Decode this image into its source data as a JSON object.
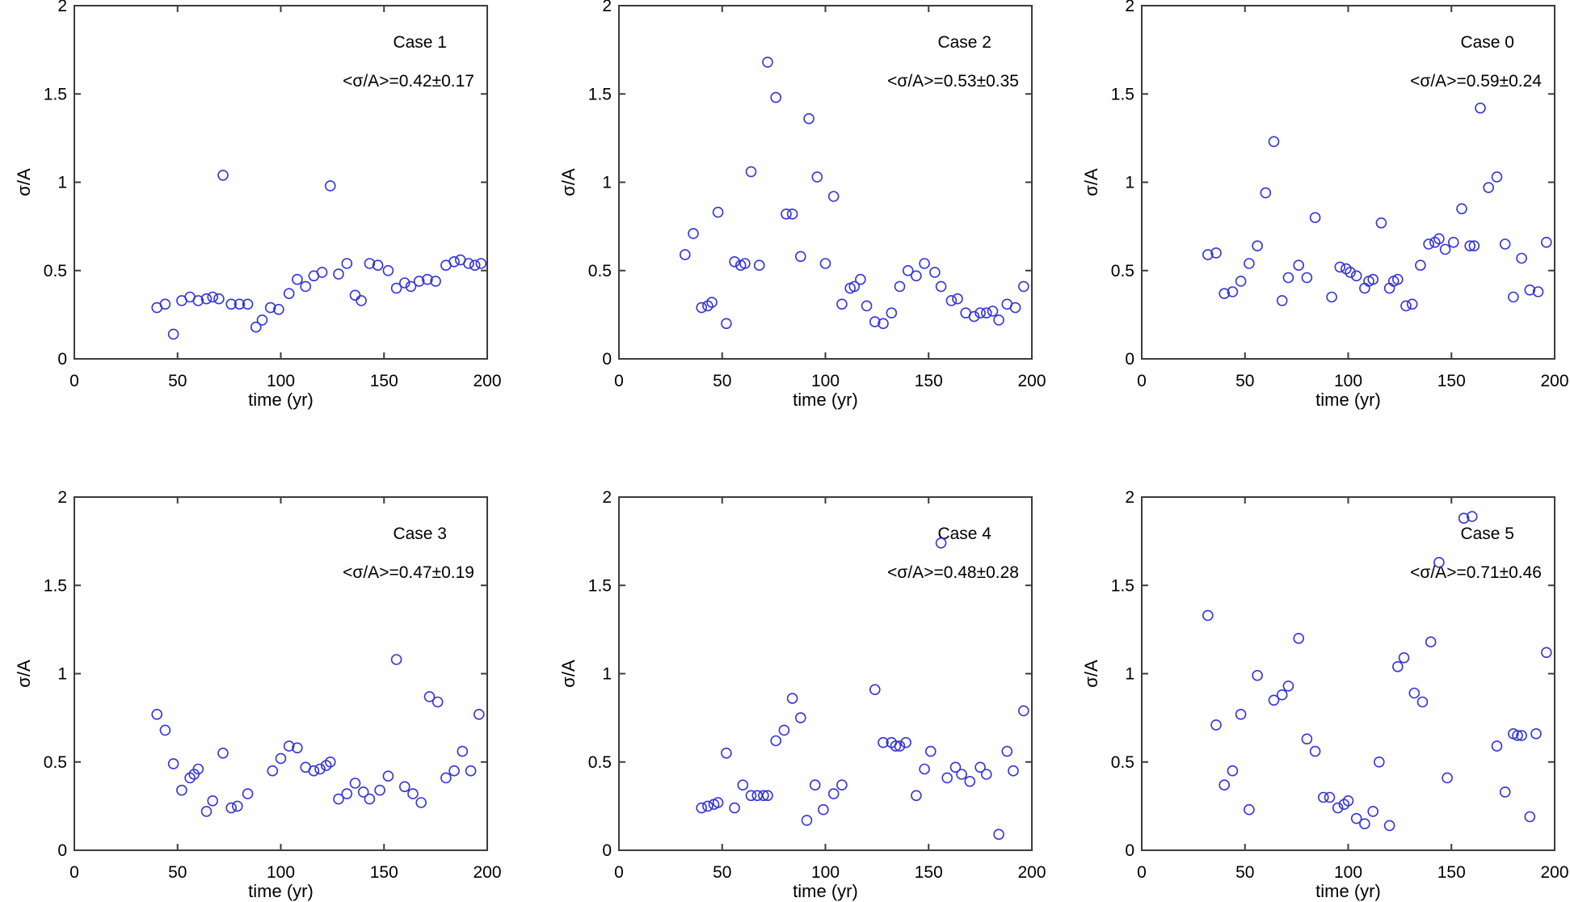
{
  "figure": {
    "background_color": "#ffffff",
    "axis_color": "#3c3c3c",
    "text_color": "#000000",
    "marker_color": "#3535d8",
    "xlabel": "time (yr)",
    "ylabel": "σ/A",
    "xlim": [
      0,
      200
    ],
    "ylim": [
      0,
      2
    ],
    "x_ticks": [
      0,
      50,
      100,
      150,
      200
    ],
    "y_ticks": [
      0,
      0.5,
      1,
      1.5,
      2
    ],
    "x_tick_labels": [
      "0",
      "50",
      "100",
      "150",
      "200"
    ],
    "y_tick_labels": [
      "0",
      "0.5",
      "1",
      "1.5",
      "2"
    ]
  },
  "chart_data": [
    {
      "type": "scatter",
      "title": "Case 1",
      "annotation": "<σ/A>=0.42±0.17",
      "mean": 0.42,
      "std": 0.17,
      "xlabel": "time (yr)",
      "ylabel": "σ/A",
      "xlim": [
        0,
        200
      ],
      "ylim": [
        0,
        2
      ],
      "grid": false,
      "legend": "none",
      "points": [
        [
          40,
          0.29
        ],
        [
          44,
          0.31
        ],
        [
          48,
          0.14
        ],
        [
          52,
          0.33
        ],
        [
          56,
          0.35
        ],
        [
          60,
          0.33
        ],
        [
          64,
          0.34
        ],
        [
          67,
          0.35
        ],
        [
          70,
          0.34
        ],
        [
          72,
          1.04
        ],
        [
          76,
          0.31
        ],
        [
          80,
          0.31
        ],
        [
          84,
          0.31
        ],
        [
          88,
          0.18
        ],
        [
          91,
          0.22
        ],
        [
          95,
          0.29
        ],
        [
          99,
          0.28
        ],
        [
          104,
          0.37
        ],
        [
          108,
          0.45
        ],
        [
          112,
          0.41
        ],
        [
          116,
          0.47
        ],
        [
          120,
          0.49
        ],
        [
          124,
          0.98
        ],
        [
          128,
          0.48
        ],
        [
          132,
          0.54
        ],
        [
          136,
          0.36
        ],
        [
          139,
          0.33
        ],
        [
          143,
          0.54
        ],
        [
          147,
          0.53
        ],
        [
          152,
          0.5
        ],
        [
          156,
          0.4
        ],
        [
          160,
          0.43
        ],
        [
          163,
          0.41
        ],
        [
          167,
          0.44
        ],
        [
          171,
          0.45
        ],
        [
          175,
          0.44
        ],
        [
          180,
          0.53
        ],
        [
          184,
          0.55
        ],
        [
          187,
          0.56
        ],
        [
          191,
          0.54
        ],
        [
          194,
          0.53
        ],
        [
          197,
          0.54
        ]
      ]
    },
    {
      "type": "scatter",
      "title": "Case 2",
      "annotation": "<σ/A>=0.53±0.35",
      "mean": 0.53,
      "std": 0.35,
      "xlabel": "time (yr)",
      "ylabel": "σ/A",
      "xlim": [
        0,
        200
      ],
      "ylim": [
        0,
        2
      ],
      "grid": false,
      "legend": "none",
      "points": [
        [
          32,
          0.59
        ],
        [
          36,
          0.71
        ],
        [
          40,
          0.29
        ],
        [
          43,
          0.3
        ],
        [
          45,
          0.32
        ],
        [
          48,
          0.83
        ],
        [
          52,
          0.2
        ],
        [
          56,
          0.55
        ],
        [
          59,
          0.53
        ],
        [
          61,
          0.54
        ],
        [
          64,
          1.06
        ],
        [
          68,
          0.53
        ],
        [
          72,
          1.68
        ],
        [
          76,
          1.48
        ],
        [
          81,
          0.82
        ],
        [
          84,
          0.82
        ],
        [
          88,
          0.58
        ],
        [
          92,
          1.36
        ],
        [
          96,
          1.03
        ],
        [
          100,
          0.54
        ],
        [
          104,
          0.92
        ],
        [
          108,
          0.31
        ],
        [
          112,
          0.4
        ],
        [
          114,
          0.41
        ],
        [
          117,
          0.45
        ],
        [
          120,
          0.3
        ],
        [
          124,
          0.21
        ],
        [
          128,
          0.2
        ],
        [
          132,
          0.26
        ],
        [
          136,
          0.41
        ],
        [
          140,
          0.5
        ],
        [
          144,
          0.47
        ],
        [
          148,
          0.54
        ],
        [
          153,
          0.49
        ],
        [
          156,
          0.41
        ],
        [
          161,
          0.33
        ],
        [
          164,
          0.34
        ],
        [
          168,
          0.26
        ],
        [
          172,
          0.24
        ],
        [
          175,
          0.26
        ],
        [
          178,
          0.26
        ],
        [
          181,
          0.27
        ],
        [
          184,
          0.22
        ],
        [
          188,
          0.31
        ],
        [
          192,
          0.29
        ],
        [
          196,
          0.41
        ]
      ]
    },
    {
      "type": "scatter",
      "title": "Case 0",
      "annotation": "<σ/A>=0.59±0.24",
      "mean": 0.59,
      "std": 0.24,
      "xlabel": "time (yr)",
      "ylabel": "σ/A",
      "xlim": [
        0,
        200
      ],
      "ylim": [
        0,
        2
      ],
      "grid": false,
      "legend": "none",
      "points": [
        [
          32,
          0.59
        ],
        [
          36,
          0.6
        ],
        [
          40,
          0.37
        ],
        [
          44,
          0.38
        ],
        [
          48,
          0.44
        ],
        [
          52,
          0.54
        ],
        [
          56,
          0.64
        ],
        [
          60,
          0.94
        ],
        [
          64,
          1.23
        ],
        [
          68,
          0.33
        ],
        [
          71,
          0.46
        ],
        [
          76,
          0.53
        ],
        [
          80,
          0.46
        ],
        [
          84,
          0.8
        ],
        [
          92,
          0.35
        ],
        [
          96,
          0.52
        ],
        [
          99,
          0.51
        ],
        [
          101,
          0.49
        ],
        [
          104,
          0.47
        ],
        [
          108,
          0.4
        ],
        [
          110,
          0.44
        ],
        [
          112,
          0.45
        ],
        [
          116,
          0.77
        ],
        [
          120,
          0.4
        ],
        [
          122,
          0.44
        ],
        [
          124,
          0.45
        ],
        [
          128,
          0.3
        ],
        [
          131,
          0.31
        ],
        [
          135,
          0.53
        ],
        [
          139,
          0.65
        ],
        [
          142,
          0.66
        ],
        [
          144,
          0.68
        ],
        [
          147,
          0.62
        ],
        [
          151,
          0.66
        ],
        [
          155,
          0.85
        ],
        [
          159,
          0.64
        ],
        [
          161,
          0.64
        ],
        [
          164,
          1.42
        ],
        [
          168,
          0.97
        ],
        [
          172,
          1.03
        ],
        [
          176,
          0.65
        ],
        [
          180,
          0.35
        ],
        [
          184,
          0.57
        ],
        [
          188,
          0.39
        ],
        [
          192,
          0.38
        ],
        [
          196,
          0.66
        ]
      ]
    },
    {
      "type": "scatter",
      "title": "Case 3",
      "annotation": "<σ/A>=0.47±0.19",
      "mean": 0.47,
      "std": 0.19,
      "xlabel": "time (yr)",
      "ylabel": "σ/A",
      "xlim": [
        0,
        200
      ],
      "ylim": [
        0,
        2
      ],
      "grid": false,
      "legend": "none",
      "points": [
        [
          40,
          0.77
        ],
        [
          44,
          0.68
        ],
        [
          48,
          0.49
        ],
        [
          52,
          0.34
        ],
        [
          56,
          0.41
        ],
        [
          58,
          0.43
        ],
        [
          60,
          0.46
        ],
        [
          64,
          0.22
        ],
        [
          67,
          0.28
        ],
        [
          72,
          0.55
        ],
        [
          76,
          0.24
        ],
        [
          79,
          0.25
        ],
        [
          84,
          0.32
        ],
        [
          96,
          0.45
        ],
        [
          100,
          0.52
        ],
        [
          104,
          0.59
        ],
        [
          108,
          0.58
        ],
        [
          112,
          0.47
        ],
        [
          116,
          0.45
        ],
        [
          119,
          0.46
        ],
        [
          122,
          0.48
        ],
        [
          124,
          0.5
        ],
        [
          128,
          0.29
        ],
        [
          132,
          0.32
        ],
        [
          136,
          0.38
        ],
        [
          140,
          0.33
        ],
        [
          143,
          0.29
        ],
        [
          148,
          0.34
        ],
        [
          152,
          0.42
        ],
        [
          156,
          1.08
        ],
        [
          160,
          0.36
        ],
        [
          164,
          0.32
        ],
        [
          168,
          0.27
        ],
        [
          172,
          0.87
        ],
        [
          176,
          0.84
        ],
        [
          180,
          0.41
        ],
        [
          184,
          0.45
        ],
        [
          188,
          0.56
        ],
        [
          192,
          0.45
        ],
        [
          196,
          0.77
        ]
      ]
    },
    {
      "type": "scatter",
      "title": "Case 4",
      "annotation": "<σ/A>=0.48±0.28",
      "mean": 0.48,
      "std": 0.28,
      "xlabel": "time (yr)",
      "ylabel": "σ/A",
      "xlim": [
        0,
        200
      ],
      "ylim": [
        0,
        2
      ],
      "grid": false,
      "legend": "none",
      "points": [
        [
          40,
          0.24
        ],
        [
          43,
          0.25
        ],
        [
          46,
          0.26
        ],
        [
          48,
          0.27
        ],
        [
          52,
          0.55
        ],
        [
          56,
          0.24
        ],
        [
          60,
          0.37
        ],
        [
          64,
          0.31
        ],
        [
          67,
          0.31
        ],
        [
          70,
          0.31
        ],
        [
          72,
          0.31
        ],
        [
          76,
          0.62
        ],
        [
          80,
          0.68
        ],
        [
          84,
          0.86
        ],
        [
          88,
          0.75
        ],
        [
          91,
          0.17
        ],
        [
          95,
          0.37
        ],
        [
          99,
          0.23
        ],
        [
          104,
          0.32
        ],
        [
          108,
          0.37
        ],
        [
          124,
          0.91
        ],
        [
          128,
          0.61
        ],
        [
          132,
          0.61
        ],
        [
          134,
          0.59
        ],
        [
          136,
          0.59
        ],
        [
          139,
          0.61
        ],
        [
          144,
          0.31
        ],
        [
          148,
          0.46
        ],
        [
          151,
          0.56
        ],
        [
          156,
          1.74
        ],
        [
          159,
          0.41
        ],
        [
          163,
          0.47
        ],
        [
          166,
          0.43
        ],
        [
          170,
          0.39
        ],
        [
          175,
          0.47
        ],
        [
          178,
          0.43
        ],
        [
          184,
          0.09
        ],
        [
          188,
          0.56
        ],
        [
          191,
          0.45
        ],
        [
          196,
          0.79
        ]
      ]
    },
    {
      "type": "scatter",
      "title": "Case 5",
      "annotation": "<σ/A>=0.71±0.46",
      "mean": 0.71,
      "std": 0.46,
      "xlabel": "time (yr)",
      "ylabel": "σ/A",
      "xlim": [
        0,
        200
      ],
      "ylim": [
        0,
        2
      ],
      "grid": false,
      "legend": "none",
      "points": [
        [
          32,
          1.33
        ],
        [
          36,
          0.71
        ],
        [
          40,
          0.37
        ],
        [
          44,
          0.45
        ],
        [
          48,
          0.77
        ],
        [
          52,
          0.23
        ],
        [
          56,
          0.99
        ],
        [
          64,
          0.85
        ],
        [
          68,
          0.88
        ],
        [
          71,
          0.93
        ],
        [
          76,
          1.2
        ],
        [
          80,
          0.63
        ],
        [
          84,
          0.56
        ],
        [
          88,
          0.3
        ],
        [
          91,
          0.3
        ],
        [
          95,
          0.24
        ],
        [
          98,
          0.26
        ],
        [
          100,
          0.28
        ],
        [
          104,
          0.18
        ],
        [
          108,
          0.15
        ],
        [
          112,
          0.22
        ],
        [
          115,
          0.5
        ],
        [
          120,
          0.14
        ],
        [
          124,
          1.04
        ],
        [
          127,
          1.09
        ],
        [
          132,
          0.89
        ],
        [
          136,
          0.84
        ],
        [
          140,
          1.18
        ],
        [
          144,
          1.63
        ],
        [
          148,
          0.41
        ],
        [
          156,
          1.88
        ],
        [
          160,
          1.89
        ],
        [
          172,
          0.59
        ],
        [
          176,
          0.33
        ],
        [
          180,
          0.66
        ],
        [
          182,
          0.65
        ],
        [
          184,
          0.65
        ],
        [
          188,
          0.19
        ],
        [
          191,
          0.66
        ],
        [
          196,
          1.12
        ]
      ]
    }
  ]
}
